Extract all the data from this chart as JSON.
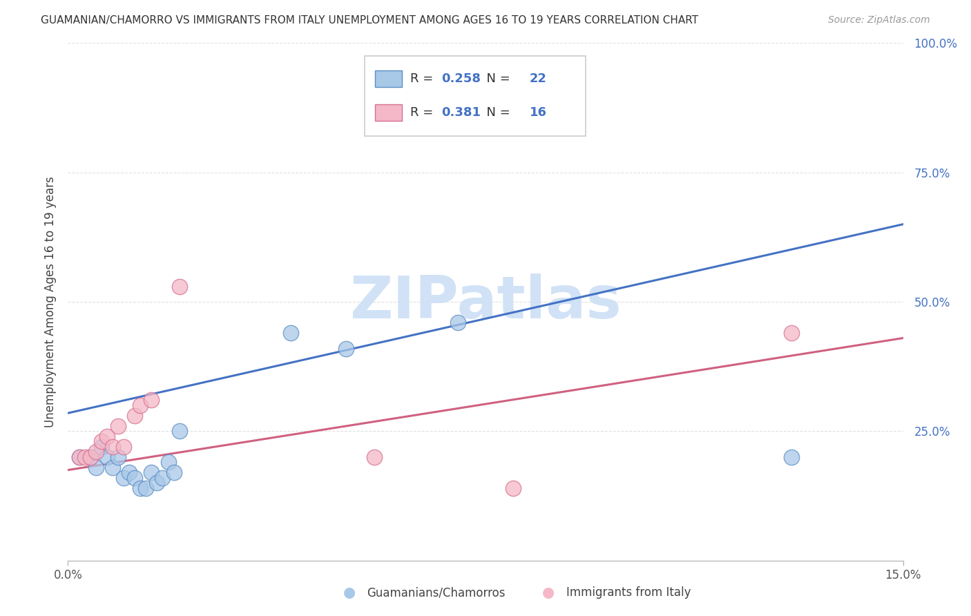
{
  "title": "GUAMANIAN/CHAMORRO VS IMMIGRANTS FROM ITALY UNEMPLOYMENT AMONG AGES 16 TO 19 YEARS CORRELATION CHART",
  "source": "Source: ZipAtlas.com",
  "ylabel": "Unemployment Among Ages 16 to 19 years",
  "series1_label": "Guamanians/Chamorros",
  "series1_R": "0.258",
  "series1_N": "22",
  "series1_color": "#a8c8e8",
  "series1_edge_color": "#5b8ec4",
  "series1_line_color": "#4472c4",
  "series2_label": "Immigrants from Italy",
  "series2_R": "0.381",
  "series2_N": "16",
  "series2_color": "#f4b8c8",
  "series2_edge_color": "#d87090",
  "series2_line_color": "#d06080",
  "background_color": "#ffffff",
  "grid_color": "#e0e0e0",
  "watermark_text": "ZIPatlas",
  "watermark_color": "#ccdff5",
  "series1_x": [
    0.002,
    0.004,
    0.005,
    0.006,
    0.007,
    0.008,
    0.009,
    0.01,
    0.011,
    0.012,
    0.013,
    0.014,
    0.015,
    0.016,
    0.017,
    0.018,
    0.019,
    0.02,
    0.04,
    0.05,
    0.07,
    0.13
  ],
  "series1_y": [
    0.2,
    0.2,
    0.18,
    0.22,
    0.2,
    0.18,
    0.2,
    0.16,
    0.17,
    0.16,
    0.14,
    0.14,
    0.17,
    0.15,
    0.16,
    0.19,
    0.17,
    0.25,
    0.44,
    0.41,
    0.46,
    0.2
  ],
  "series2_x": [
    0.002,
    0.003,
    0.004,
    0.005,
    0.006,
    0.007,
    0.008,
    0.009,
    0.01,
    0.012,
    0.013,
    0.015,
    0.02,
    0.055,
    0.08,
    0.13
  ],
  "series2_y": [
    0.2,
    0.2,
    0.2,
    0.21,
    0.23,
    0.24,
    0.22,
    0.26,
    0.22,
    0.28,
    0.3,
    0.31,
    0.53,
    0.2,
    0.14,
    0.44
  ],
  "series1_line_x": [
    0.0,
    0.15
  ],
  "series1_line_y": [
    0.285,
    0.65
  ],
  "series2_line_x": [
    0.0,
    0.15
  ],
  "series2_line_y": [
    0.175,
    0.43
  ],
  "xlim": [
    0.0,
    0.15
  ],
  "ylim": [
    0.0,
    1.0
  ],
  "yticks": [
    0.25,
    0.5,
    0.75,
    1.0
  ],
  "ytick_labels": [
    "25.0%",
    "50.0%",
    "75.0%",
    "100.0%"
  ],
  "xtick_positions": [
    0.0,
    0.15
  ],
  "xtick_labels": [
    "0.0%",
    "15.0%"
  ],
  "title_fontsize": 11,
  "source_fontsize": 10,
  "tick_fontsize": 12,
  "ylabel_fontsize": 12
}
